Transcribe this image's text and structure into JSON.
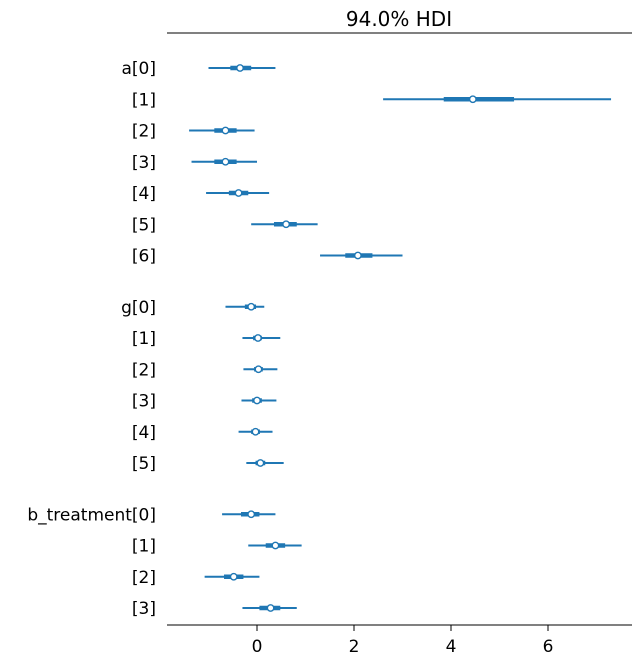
{
  "chart_data": {
    "type": "forest",
    "title": "94.0% HDI",
    "xlim": [
      -1.8,
      7.7
    ],
    "xticks": [
      0,
      2,
      4,
      6
    ],
    "color": "#1f77b4",
    "groups": [
      {
        "rows": [
          {
            "label": "a[0]",
            "mean": -0.35,
            "hdi_low": -1.0,
            "hdi_high": 0.38,
            "iqr_low": -0.55,
            "iqr_high": -0.12
          },
          {
            "label": "[1]",
            "mean": 4.45,
            "hdi_low": 2.6,
            "hdi_high": 7.3,
            "iqr_low": 3.85,
            "iqr_high": 5.3
          },
          {
            "label": "[2]",
            "mean": -0.65,
            "hdi_low": -1.4,
            "hdi_high": -0.05,
            "iqr_low": -0.88,
            "iqr_high": -0.42
          },
          {
            "label": "[3]",
            "mean": -0.65,
            "hdi_low": -1.35,
            "hdi_high": 0.0,
            "iqr_low": -0.88,
            "iqr_high": -0.42
          },
          {
            "label": "[4]",
            "mean": -0.38,
            "hdi_low": -1.05,
            "hdi_high": 0.25,
            "iqr_low": -0.58,
            "iqr_high": -0.18
          },
          {
            "label": "[5]",
            "mean": 0.6,
            "hdi_low": -0.12,
            "hdi_high": 1.25,
            "iqr_low": 0.35,
            "iqr_high": 0.82
          },
          {
            "label": "[6]",
            "mean": 2.08,
            "hdi_low": 1.3,
            "hdi_high": 3.0,
            "iqr_low": 1.82,
            "iqr_high": 2.38
          }
        ]
      },
      {
        "rows": [
          {
            "label": "g[0]",
            "mean": -0.12,
            "hdi_low": -0.65,
            "hdi_high": 0.15,
            "iqr_low": -0.25,
            "iqr_high": -0.02
          },
          {
            "label": "[1]",
            "mean": 0.02,
            "hdi_low": -0.3,
            "hdi_high": 0.48,
            "iqr_low": -0.08,
            "iqr_high": 0.1
          },
          {
            "label": "[2]",
            "mean": 0.03,
            "hdi_low": -0.28,
            "hdi_high": 0.42,
            "iqr_low": -0.06,
            "iqr_high": 0.12
          },
          {
            "label": "[3]",
            "mean": 0.0,
            "hdi_low": -0.32,
            "hdi_high": 0.4,
            "iqr_low": -0.1,
            "iqr_high": 0.1
          },
          {
            "label": "[4]",
            "mean": -0.03,
            "hdi_low": -0.38,
            "hdi_high": 0.32,
            "iqr_low": -0.12,
            "iqr_high": 0.06
          },
          {
            "label": "[5]",
            "mean": 0.07,
            "hdi_low": -0.22,
            "hdi_high": 0.55,
            "iqr_low": -0.03,
            "iqr_high": 0.17
          }
        ]
      },
      {
        "rows": [
          {
            "label": "b_treatment[0]",
            "mean": -0.12,
            "hdi_low": -0.72,
            "hdi_high": 0.38,
            "iqr_low": -0.33,
            "iqr_high": 0.05
          },
          {
            "label": "[1]",
            "mean": 0.38,
            "hdi_low": -0.18,
            "hdi_high": 0.92,
            "iqr_low": 0.18,
            "iqr_high": 0.58
          },
          {
            "label": "[2]",
            "mean": -0.48,
            "hdi_low": -1.08,
            "hdi_high": 0.05,
            "iqr_low": -0.68,
            "iqr_high": -0.28
          },
          {
            "label": "[3]",
            "mean": 0.28,
            "hdi_low": -0.3,
            "hdi_high": 0.82,
            "iqr_low": 0.05,
            "iqr_high": 0.48
          }
        ]
      }
    ]
  }
}
